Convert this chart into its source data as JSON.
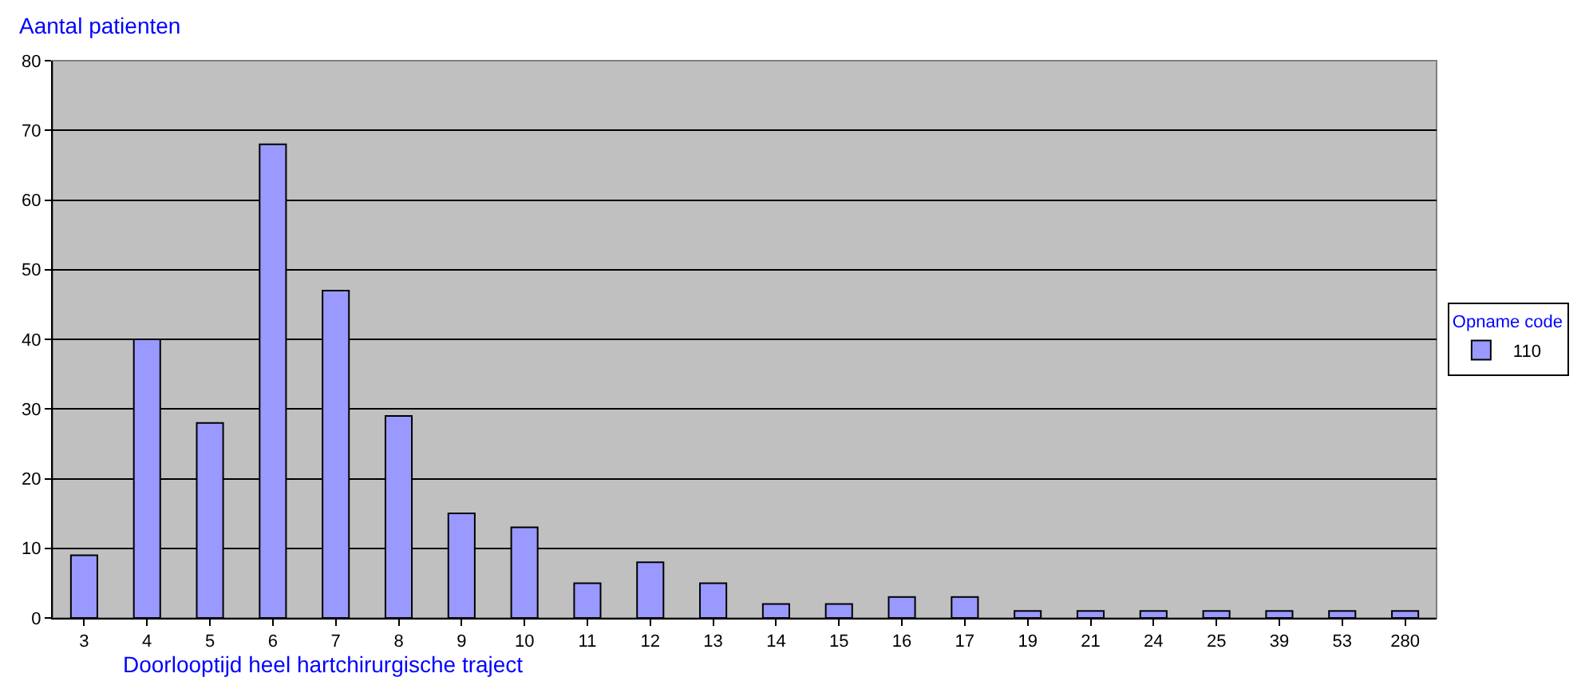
{
  "chart_data": {
    "type": "bar",
    "ylabel": "Aantal patienten",
    "xlabel": "Doorlooptijd heel hartchirurgische traject",
    "legend_title": "Opname code",
    "categories": [
      "3",
      "4",
      "5",
      "6",
      "7",
      "8",
      "9",
      "10",
      "11",
      "12",
      "13",
      "14",
      "15",
      "16",
      "17",
      "19",
      "21",
      "24",
      "25",
      "39",
      "53",
      "280"
    ],
    "series": [
      {
        "name": "110",
        "color": "#9999ff",
        "values": [
          9,
          40,
          28,
          68,
          47,
          29,
          15,
          13,
          5,
          8,
          5,
          2,
          2,
          3,
          3,
          1,
          1,
          1,
          1,
          1,
          1,
          1
        ]
      }
    ],
    "ylim": [
      0,
      80
    ],
    "yticks": [
      0,
      10,
      20,
      30,
      40,
      50,
      60,
      70,
      80
    ],
    "grid": "y",
    "legend": "right"
  }
}
